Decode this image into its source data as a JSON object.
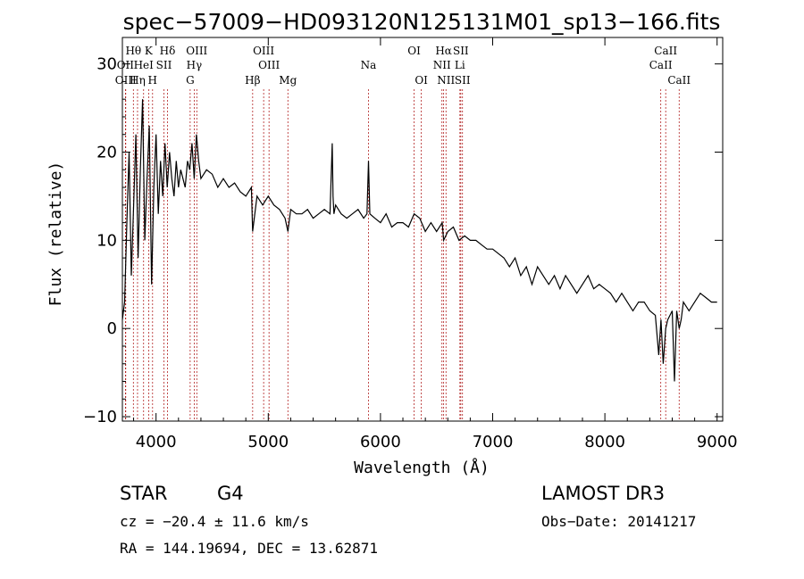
{
  "chart_data": {
    "type": "line",
    "title": "spec−57009−HD093120N125131M01_sp13−166.fits",
    "xlabel": "Wavelength (Å)",
    "ylabel": "Flux (relative)",
    "xlim": [
      3700,
      9050
    ],
    "ylim": [
      -10.5,
      33
    ],
    "x_ticks": [
      4000,
      5000,
      6000,
      7000,
      8000,
      9000
    ],
    "y_ticks": [
      -10,
      0,
      10,
      20,
      30
    ],
    "y_tick_labels": [
      "−10",
      "0",
      "10",
      "20",
      "30"
    ],
    "line_color": "#000000",
    "marker_color": "#b22222",
    "series": [
      {
        "name": "flux",
        "x": [
          3700,
          3720,
          3740,
          3760,
          3780,
          3800,
          3820,
          3840,
          3860,
          3880,
          3900,
          3920,
          3940,
          3960,
          3980,
          4000,
          4020,
          4040,
          4060,
          4080,
          4100,
          4120,
          4140,
          4160,
          4180,
          4200,
          4220,
          4240,
          4260,
          4280,
          4300,
          4320,
          4340,
          4360,
          4380,
          4400,
          4450,
          4500,
          4550,
          4600,
          4650,
          4700,
          4750,
          4800,
          4850,
          4861,
          4900,
          4950,
          5000,
          5050,
          5100,
          5150,
          5175,
          5200,
          5250,
          5300,
          5350,
          5400,
          5450,
          5500,
          5550,
          5570,
          5577,
          5585,
          5600,
          5650,
          5700,
          5750,
          5800,
          5850,
          5880,
          5893,
          5905,
          5950,
          6000,
          6050,
          6100,
          6150,
          6200,
          6250,
          6300,
          6350,
          6400,
          6450,
          6500,
          6550,
          6563,
          6600,
          6650,
          6700,
          6750,
          6800,
          6850,
          6900,
          6950,
          7000,
          7050,
          7100,
          7150,
          7200,
          7250,
          7300,
          7350,
          7400,
          7450,
          7500,
          7550,
          7600,
          7650,
          7700,
          7750,
          7800,
          7850,
          7900,
          7950,
          8000,
          8050,
          8100,
          8150,
          8200,
          8250,
          8300,
          8350,
          8400,
          8450,
          8480,
          8500,
          8520,
          8542,
          8560,
          8600,
          8620,
          8640,
          8662,
          8680,
          8700,
          8750,
          8800,
          8850,
          8900,
          8950,
          9000
        ],
        "y": [
          1,
          3,
          12,
          20,
          6,
          14,
          22,
          8,
          18,
          26,
          10,
          17,
          23,
          5,
          16,
          22,
          13,
          19,
          15,
          21,
          16,
          20,
          17,
          15,
          19,
          16,
          18,
          17,
          16,
          19,
          18,
          21,
          17,
          22,
          19,
          17,
          18,
          17.5,
          16,
          17,
          16,
          16.5,
          15.5,
          15,
          16,
          11,
          15,
          14,
          15,
          14,
          13.5,
          12.5,
          11,
          13.5,
          13,
          13,
          13.5,
          12.5,
          13,
          13.5,
          13,
          21,
          15,
          13,
          14,
          13,
          12.5,
          13,
          13.5,
          12.5,
          13,
          19,
          13,
          12.5,
          12,
          13,
          11.5,
          12,
          12,
          11.5,
          13,
          12.5,
          11,
          12,
          11,
          12,
          10,
          11,
          11.5,
          10,
          10.5,
          10,
          10,
          9.5,
          9,
          9,
          8.5,
          8,
          7,
          8,
          6,
          7,
          5,
          7,
          6,
          5,
          6,
          4.5,
          6,
          5,
          4,
          5,
          6,
          4.5,
          5,
          4.5,
          4,
          3,
          4,
          3,
          2,
          3,
          3,
          2,
          1.5,
          -3,
          1,
          -4,
          0,
          1,
          2,
          -6,
          2,
          0,
          1,
          3,
          2,
          3,
          4,
          3.5,
          3,
          3
        ]
      }
    ],
    "spectral_lines": [
      {
        "label": "Hθ",
        "x": 3798,
        "row": 0
      },
      {
        "label": "OII",
        "x": 3727,
        "row": 1
      },
      {
        "label": "OIII",
        "x": 3730,
        "row": 2
      },
      {
        "label": "HeI",
        "x": 3889,
        "row": 1
      },
      {
        "label": "Hη",
        "x": 3835,
        "row": 2
      },
      {
        "label": "K",
        "x": 3934,
        "row": 0
      },
      {
        "label": "SII",
        "x": 4070,
        "row": 1
      },
      {
        "label": "H",
        "x": 3969,
        "row": 2
      },
      {
        "label": "Hδ",
        "x": 4102,
        "row": 0
      },
      {
        "label": "OIII",
        "x": 4363,
        "row": 0
      },
      {
        "label": "Hγ",
        "x": 4340,
        "row": 1
      },
      {
        "label": "G",
        "x": 4304,
        "row": 2
      },
      {
        "label": "OIII",
        "x": 4959,
        "row": 0
      },
      {
        "label": "OIII",
        "x": 5007,
        "row": 1
      },
      {
        "label": "Hβ",
        "x": 4861,
        "row": 2
      },
      {
        "label": "Mg",
        "x": 5175,
        "row": 2
      },
      {
        "label": "Na",
        "x": 5893,
        "row": 1
      },
      {
        "label": "OI",
        "x": 6300,
        "row": 0
      },
      {
        "label": "OI",
        "x": 6364,
        "row": 2
      },
      {
        "label": "Hα",
        "x": 6563,
        "row": 0
      },
      {
        "label": "SII",
        "x": 6716,
        "row": 0
      },
      {
        "label": "NII",
        "x": 6548,
        "row": 1
      },
      {
        "label": "Li",
        "x": 6708,
        "row": 1
      },
      {
        "label": "NII",
        "x": 6584,
        "row": 2
      },
      {
        "label": "SII",
        "x": 6731,
        "row": 2
      },
      {
        "label": "CaII",
        "x": 8542,
        "row": 0
      },
      {
        "label": "CaII",
        "x": 8498,
        "row": 1
      },
      {
        "label": "CaII",
        "x": 8662,
        "row": 2
      }
    ]
  },
  "info": {
    "object_type": "STAR",
    "subclass": "G4",
    "survey": "LAMOST DR3",
    "cz": "cz = −20.4 ± 11.6 km/s",
    "obs_date": "Obs−Date: 20141217",
    "coords": "RA = 144.19694, DEC =  13.62871"
  }
}
